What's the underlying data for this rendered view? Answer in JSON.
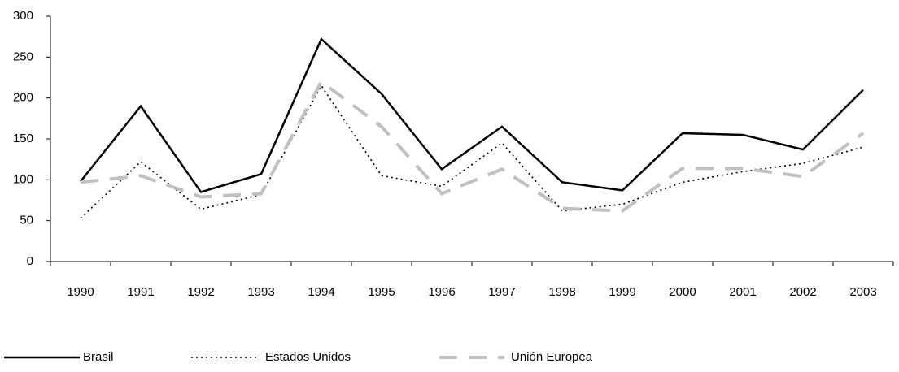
{
  "chart_data": {
    "type": "line",
    "categories": [
      "1990",
      "1991",
      "1992",
      "1993",
      "1994",
      "1995",
      "1996",
      "1997",
      "1998",
      "1999",
      "2000",
      "2001",
      "2002",
      "2003"
    ],
    "series": [
      {
        "name": "Brasil",
        "color": "#000000",
        "style": "solid",
        "values": [
          98,
          190,
          85,
          107,
          272,
          205,
          113,
          165,
          97,
          87,
          157,
          155,
          137,
          210
        ]
      },
      {
        "name": "Estados Unidos",
        "color": "#000000",
        "style": "dotted",
        "values": [
          53,
          122,
          64,
          82,
          215,
          105,
          92,
          145,
          62,
          70,
          97,
          110,
          120,
          140
        ]
      },
      {
        "name": "Unión Europea",
        "color": "#c0c0c0",
        "style": "dashed",
        "values": [
          97,
          105,
          79,
          83,
          220,
          165,
          83,
          113,
          65,
          62,
          114,
          114,
          104,
          157
        ]
      }
    ],
    "ylim": [
      0,
      300
    ],
    "yticks": [
      0,
      50,
      100,
      150,
      200,
      250,
      300
    ],
    "legend": "bottom"
  }
}
